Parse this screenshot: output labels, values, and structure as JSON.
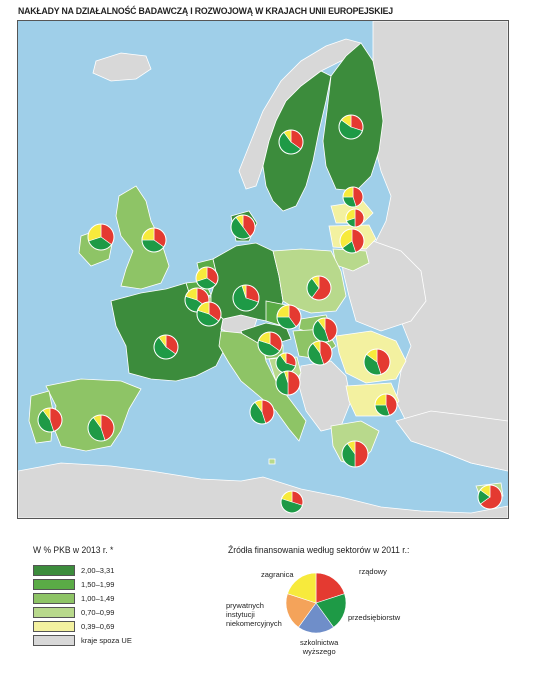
{
  "title": "NAKŁADY NA DZIAŁALNOŚĆ BADAWCZĄ I ROZWOJOWĄ W KRAJACH UNII EUROPEJSKIEJ",
  "colors": {
    "sea": "#9fcfe9",
    "non_eu": "#d8d8d8",
    "class_5": "#3c8c3c",
    "class_4": "#5aab46",
    "class_3": "#8ec466",
    "class_2": "#b8d98c",
    "class_1": "#f3f1a0",
    "pie_rzadowy": "#e43a31",
    "pie_przedsiebiorstw": "#1e9a46",
    "pie_szkolnictwo": "#6f8ec9",
    "pie_prywatne": "#f4a35a",
    "pie_zagranica": "#f7ea3c"
  },
  "legend_left": {
    "title": "W % PKB w 2013 r. *",
    "items": [
      {
        "label": "2,00–3,31",
        "color_key": "class_5"
      },
      {
        "label": "1,50–1,99",
        "color_key": "class_4"
      },
      {
        "label": "1,00–1,49",
        "color_key": "class_3"
      },
      {
        "label": "0,70–0,99",
        "color_key": "class_2"
      },
      {
        "label": "0,39–0,69",
        "color_key": "class_1"
      },
      {
        "label": "kraje spoza UE",
        "color_key": "non_eu"
      }
    ]
  },
  "legend_right": {
    "title": "Źródła finansowania według sektorów w 2011 r.:",
    "label_zagranica": "zagranica",
    "label_rzadowy": "rządowy",
    "label_przedsiebiorstw": "przedsiębiorstw",
    "label_szkolnictwo_1": "szkolnictwa",
    "label_szkolnictwo_2": "wyższego",
    "label_prywatne_1": "prywatnych",
    "label_prywatne_2": "instytucji",
    "label_prywatne_3": "niekomercyjnych"
  }
}
